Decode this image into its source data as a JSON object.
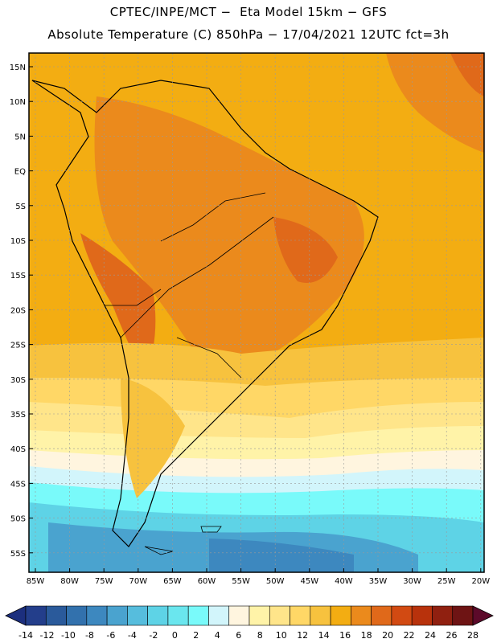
{
  "title": {
    "line1": "CPTEC/INPE/MCT −  Eta Model 15km − GFS",
    "line2": "Absolute Temperature (C) 850hPa − 17/04/2021 12UTC fct=3h"
  },
  "axes": {
    "lat_labels": [
      "15N",
      "10N",
      "5N",
      "EQ",
      "5S",
      "10S",
      "15S",
      "20S",
      "25S",
      "30S",
      "35S",
      "40S",
      "45S",
      "50S",
      "55S"
    ],
    "lon_labels": [
      "85W",
      "80W",
      "75W",
      "70W",
      "65W",
      "60W",
      "55W",
      "50W",
      "45W",
      "40W",
      "35W",
      "30W",
      "25W",
      "20W"
    ]
  },
  "colorbar": {
    "labels": [
      "-14",
      "-12",
      "-10",
      "-8",
      "-6",
      "-4",
      "-2",
      "0",
      "2",
      "4",
      "6",
      "8",
      "10",
      "12",
      "14",
      "16",
      "18",
      "20",
      "22",
      "24",
      "26",
      "28"
    ],
    "low_color": "#1c2f7e",
    "high_color": "#5c0a2a",
    "colors": [
      "#233e8b",
      "#2a5a9b",
      "#3271ad",
      "#3d88bf",
      "#4aa3cf",
      "#56bddd",
      "#5ed3e6",
      "#6ae6ee",
      "#79fafa",
      "#d2f5fb",
      "#fff5df",
      "#fff3a8",
      "#ffe58a",
      "#ffd766",
      "#f7c23e",
      "#f3ad12",
      "#eb8a1c",
      "#e0691a",
      "#d24a12",
      "#b8320c",
      "#902010",
      "#6e1414"
    ]
  },
  "map": {
    "background_color": "#f3ad12"
  }
}
